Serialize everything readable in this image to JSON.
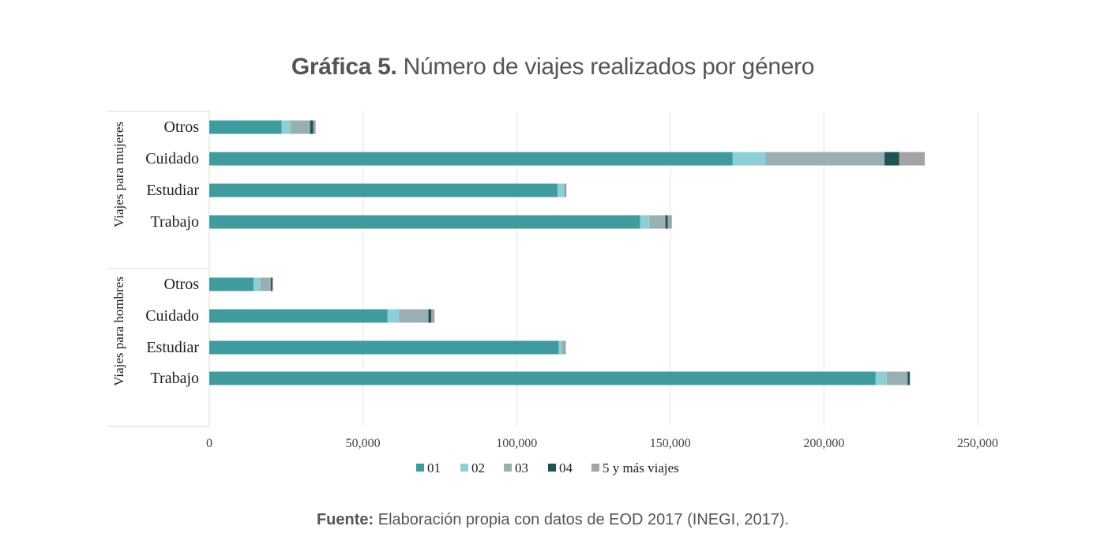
{
  "header": {
    "title_bold": "Gráfica 5.",
    "title_rest": " Número de viajes realizados por género"
  },
  "footer": {
    "source_bold": "Fuente:",
    "source_rest": " Elaboración propia con datos de EOD 2017 (INEGI, 2017)."
  },
  "chart_data": {
    "type": "bar",
    "orientation": "horizontal",
    "stacked": true,
    "title": "Gráfica 5. Número de viajes realizados por género",
    "xlim": [
      0,
      250000
    ],
    "x_ticks": [
      "0",
      "50,000",
      "100,000",
      "150,000",
      "200,000",
      "250,000"
    ],
    "grid": true,
    "legend_position": "bottom",
    "series_names": [
      "01",
      "02",
      "03",
      "04",
      "5 y más viajes"
    ],
    "colors": [
      "#3e9c9e",
      "#8dcfd6",
      "#9aafb2",
      "#1e5455",
      "#a3a3a3"
    ],
    "groups": [
      {
        "label": "Viajes para mujeres",
        "categories": [
          "Otros",
          "Cuidado",
          "Estudiar",
          "Trabajo"
        ],
        "values": [
          [
            23500,
            3000,
            6300,
            1000,
            800
          ],
          [
            170300,
            10700,
            38700,
            4800,
            8300
          ],
          [
            113300,
            2000,
            700,
            100,
            100
          ],
          [
            140200,
            3000,
            5200,
            800,
            1300
          ]
        ]
      },
      {
        "label": "Viajes para hombres",
        "categories": [
          "Otros",
          "Cuidado",
          "Estudiar",
          "Trabajo"
        ],
        "values": [
          [
            14400,
            2300,
            3300,
            500,
            300
          ],
          [
            58000,
            3800,
            9500,
            900,
            1100
          ],
          [
            113700,
            900,
            1200,
            100,
            100
          ],
          [
            216800,
            3600,
            6800,
            700,
            100
          ]
        ]
      }
    ]
  }
}
